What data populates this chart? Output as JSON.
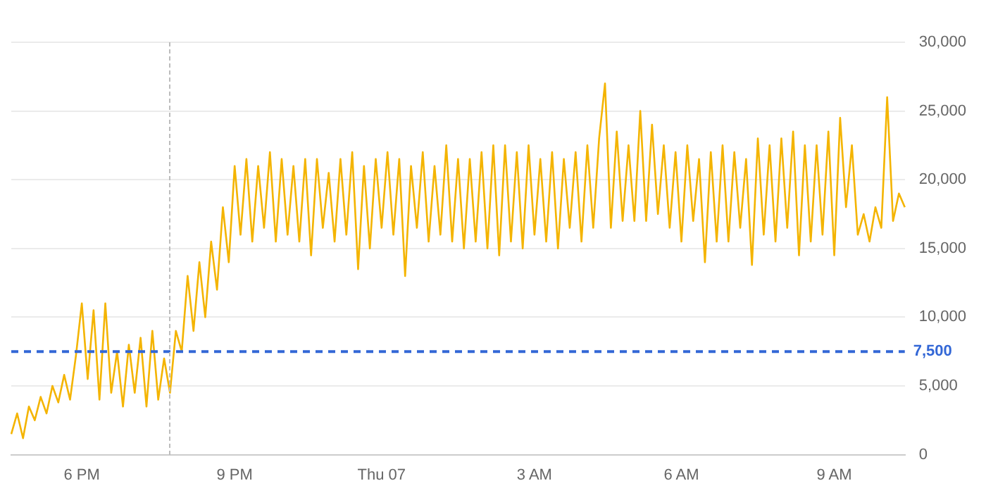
{
  "chart_data": {
    "type": "line",
    "grid": "y",
    "categories": [
      null,
      null,
      null,
      null,
      null,
      null,
      null,
      null,
      null,
      null,
      null,
      null,
      "6 PM",
      null,
      null,
      null,
      null,
      null,
      null,
      null,
      null,
      null,
      null,
      null,
      null,
      null,
      null,
      null,
      null,
      null,
      null,
      null,
      null,
      null,
      null,
      null,
      null,
      null,
      "9 PM",
      null,
      null,
      null,
      null,
      null,
      null,
      null,
      null,
      null,
      null,
      null,
      null,
      null,
      null,
      null,
      null,
      null,
      null,
      null,
      null,
      null,
      null,
      null,
      null,
      "Thu 07",
      null,
      null,
      null,
      null,
      null,
      null,
      null,
      null,
      null,
      null,
      null,
      null,
      null,
      null,
      null,
      null,
      null,
      null,
      null,
      null,
      null,
      null,
      null,
      null,
      null,
      "3 AM",
      null,
      null,
      null,
      null,
      null,
      null,
      null,
      null,
      null,
      null,
      null,
      null,
      null,
      null,
      null,
      null,
      null,
      null,
      null,
      null,
      null,
      null,
      null,
      null,
      "6 AM",
      null,
      null,
      null,
      null,
      null,
      null,
      null,
      null,
      null,
      null,
      null,
      null,
      null,
      null,
      null,
      null,
      null,
      null,
      null,
      null,
      null,
      null,
      null,
      null,
      null,
      "9 AM",
      null,
      null,
      null,
      null,
      null,
      null,
      null,
      null,
      null,
      null,
      null,
      null
    ],
    "ylim": [
      0,
      30000
    ],
    "yticks": [
      {
        "value": 0,
        "label": "0"
      },
      {
        "value": 5000,
        "label": "5,000"
      },
      {
        "value": 10000,
        "label": "10,000"
      },
      {
        "value": 15000,
        "label": "15,000"
      },
      {
        "value": 20000,
        "label": "20,000"
      },
      {
        "value": 25000,
        "label": "25,000"
      },
      {
        "value": 30000,
        "label": "30,000"
      }
    ],
    "ref_lines": [
      {
        "axis": "y",
        "value": 7500,
        "label": "7,500",
        "color": "#3367d6",
        "line_style": "dashed"
      }
    ],
    "series": [
      {
        "color": "#f4b400",
        "values": [
          1500,
          3000,
          1200,
          3500,
          2500,
          4200,
          3000,
          5000,
          3800,
          5800,
          4000,
          7200,
          11000,
          5500,
          10500,
          4000,
          11000,
          4500,
          7500,
          3500,
          8000,
          4500,
          8500,
          3500,
          9000,
          4000,
          7000,
          4500,
          9000,
          7500,
          13000,
          9000,
          14000,
          10000,
          15500,
          12000,
          18000,
          14000,
          21000,
          16000,
          21500,
          15500,
          21000,
          16500,
          22000,
          15500,
          21500,
          16000,
          21000,
          15500,
          21500,
          14500,
          21500,
          16500,
          20500,
          15500,
          21500,
          16000,
          22000,
          13500,
          21000,
          15000,
          21500,
          16500,
          22000,
          16000,
          21500,
          13000,
          21000,
          16500,
          22000,
          15500,
          21000,
          16000,
          22500,
          15500,
          21500,
          15000,
          21500,
          15500,
          22000,
          15000,
          22500,
          14500,
          22500,
          15500,
          22000,
          15000,
          22500,
          16000,
          21500,
          15500,
          22000,
          15000,
          21500,
          16500,
          22000,
          15500,
          22500,
          16500,
          23000,
          27000,
          16500,
          23500,
          17000,
          22500,
          17000,
          25000,
          17000,
          24000,
          17500,
          22500,
          16500,
          22000,
          15500,
          22500,
          17000,
          21500,
          14000,
          22000,
          15500,
          22500,
          15500,
          22000,
          16500,
          21500,
          13800,
          23000,
          16000,
          22500,
          15500,
          23000,
          16500,
          23500,
          14500,
          22500,
          15500,
          22500,
          16000,
          23500,
          14500,
          24500,
          18000,
          22500,
          16000,
          17500,
          15500,
          18000,
          16500,
          26000,
          17000,
          19000,
          18000
        ]
      }
    ]
  }
}
